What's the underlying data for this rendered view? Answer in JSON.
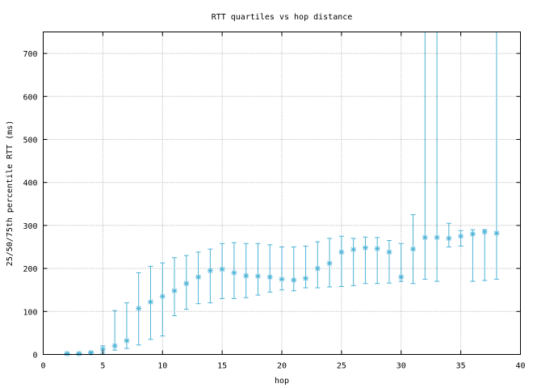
{
  "chart_data": {
    "type": "scatter",
    "title": "RTT quartiles vs hop distance",
    "xlabel": "hop",
    "ylabel": "25/50/75th percentile RTT (ms)",
    "xlim": [
      0,
      40
    ],
    "ylim": [
      0,
      750
    ],
    "xticks": [
      0,
      5,
      10,
      15,
      20,
      25,
      30,
      35,
      40
    ],
    "yticks": [
      0,
      100,
      200,
      300,
      400,
      500,
      600,
      700
    ],
    "grid": true,
    "color": "#4bb2d6",
    "series": [
      {
        "hop": [
          2,
          3,
          4,
          5,
          6,
          7,
          8,
          9,
          10,
          11,
          12,
          13,
          14,
          15,
          16,
          17,
          18,
          19,
          20,
          21,
          22,
          23,
          24,
          25,
          26,
          27,
          28,
          29,
          30,
          31,
          32,
          33,
          34,
          35,
          36,
          37,
          38
        ],
        "p25": [
          1,
          1,
          1,
          3,
          10,
          14,
          22,
          35,
          43,
          90,
          105,
          118,
          120,
          130,
          130,
          132,
          138,
          145,
          150,
          148,
          155,
          155,
          157,
          158,
          160,
          165,
          165,
          166,
          170,
          165,
          175,
          170,
          250,
          252,
          170,
          172,
          175
        ],
        "median": [
          2,
          2,
          4,
          12,
          20,
          32,
          107,
          122,
          135,
          148,
          165,
          180,
          195,
          198,
          190,
          183,
          182,
          180,
          175,
          173,
          177,
          200,
          212,
          238,
          244,
          248,
          246,
          238,
          180,
          245,
          272,
          272,
          270,
          275,
          280,
          285,
          282
        ],
        "p75": [
          3,
          3,
          6,
          20,
          102,
          120,
          190,
          205,
          213,
          225,
          230,
          238,
          245,
          258,
          260,
          258,
          258,
          255,
          250,
          250,
          252,
          262,
          270,
          275,
          270,
          273,
          272,
          265,
          258,
          325,
          750,
          750,
          305,
          288,
          290,
          290,
          750
        ]
      }
    ]
  }
}
